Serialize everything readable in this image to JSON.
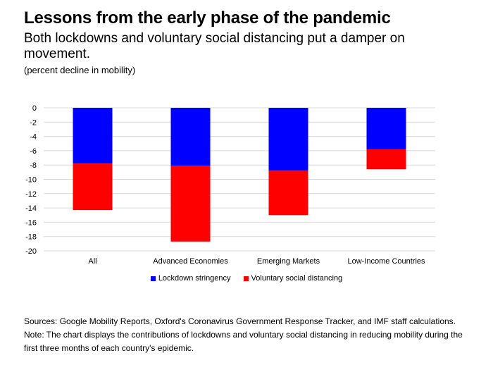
{
  "heading": {
    "title": "Lessons from the early phase of the pandemic",
    "subtitle": "Both lockdowns and voluntary social distancing put a damper on movement.",
    "unit": "(percent decline in mobility)"
  },
  "chart_data": {
    "type": "bar",
    "stacked": true,
    "categories": [
      "All",
      "Advanced Economies",
      "Emerging Markets",
      "Low-Income Countries"
    ],
    "series": [
      {
        "name": "Lockdown stringency",
        "color": "#0000ff",
        "values": [
          -7.8,
          -8.1,
          -8.8,
          -5.8
        ]
      },
      {
        "name": "Voluntary social distancing",
        "color": "#ff0000",
        "values": [
          -6.5,
          -10.6,
          -6.2,
          -2.8
        ]
      }
    ],
    "ylim": [
      -20,
      0
    ],
    "yticks": [
      0,
      -2,
      -4,
      -6,
      -8,
      -10,
      -12,
      -14,
      -16,
      -18,
      -20
    ],
    "grid": true,
    "legend_position": "bottom"
  },
  "notes": {
    "sources": "Sources: Google Mobility Reports, Oxford's Coronavirus Government Response Tracker, and IMF staff calculations.",
    "note": "Note: The chart displays the contributions of lockdowns and voluntary social distancing in reducing mobility during the first three months of each country's epidemic."
  }
}
